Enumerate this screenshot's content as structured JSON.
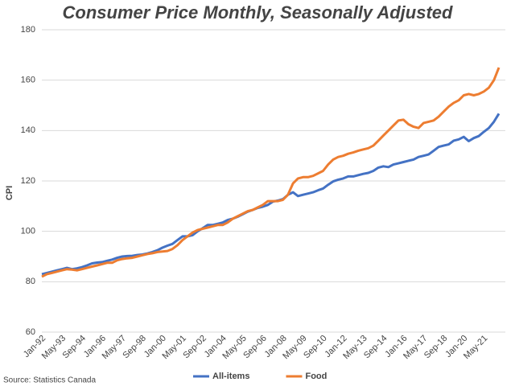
{
  "chart_data": {
    "type": "line",
    "title": "Consumer Price Monthly, Seasonally Adjusted",
    "y_label": "CPI",
    "source": "Source: Statistics Canada",
    "categories": [
      "Jan-92",
      null,
      null,
      null,
      "May-93",
      null,
      null,
      null,
      "Sep-94",
      null,
      null,
      null,
      "Jan-96",
      null,
      null,
      null,
      "May-97",
      null,
      null,
      null,
      "Sep-98",
      null,
      null,
      null,
      "Jan-00",
      null,
      null,
      null,
      "May-01",
      null,
      null,
      null,
      "Sep-02",
      null,
      null,
      null,
      "Jan-04",
      null,
      null,
      null,
      "May-05",
      null,
      null,
      null,
      "Sep-06",
      null,
      null,
      null,
      "Jan-08",
      null,
      null,
      null,
      "May-09",
      null,
      null,
      null,
      "Sep-10",
      null,
      null,
      null,
      "Jan-12",
      null,
      null,
      null,
      "May-13",
      null,
      null,
      null,
      "Sep-14",
      null,
      null,
      null,
      "Jan-16",
      null,
      null,
      null,
      "May-17",
      null,
      null,
      null,
      "Sep-18",
      null,
      null,
      null,
      "Jan-20",
      null,
      null,
      null,
      "May-21",
      null,
      null,
      null
    ],
    "series": [
      {
        "name": "All-items",
        "color": "#4472c4",
        "values": [
          83.0,
          83.5,
          84.0,
          84.5,
          85.0,
          85.5,
          85.0,
          85.3,
          85.8,
          86.5,
          87.3,
          87.6,
          87.8,
          88.3,
          88.8,
          89.5,
          90.0,
          90.2,
          90.3,
          90.6,
          90.8,
          91.2,
          91.8,
          92.5,
          93.5,
          94.3,
          95.0,
          96.5,
          98.0,
          98.0,
          98.5,
          100.0,
          101.2,
          102.5,
          102.5,
          103.0,
          103.5,
          104.5,
          105.0,
          105.8,
          106.8,
          107.8,
          108.5,
          109.3,
          109.8,
          110.5,
          111.8,
          112.2,
          112.8,
          114.5,
          115.5,
          114.0,
          114.5,
          115.0,
          115.5,
          116.3,
          117.0,
          118.5,
          119.8,
          120.5,
          121.0,
          121.8,
          121.8,
          122.3,
          122.8,
          123.2,
          124.0,
          125.3,
          125.8,
          125.5,
          126.5,
          127.0,
          127.5,
          128.0,
          128.5,
          129.5,
          130.0,
          130.5,
          132.0,
          133.5,
          134.0,
          134.5,
          136.0,
          136.5,
          137.5,
          135.8,
          137.0,
          137.8,
          139.5,
          141.0,
          143.5,
          146.7
        ]
      },
      {
        "name": "Food",
        "color": "#ed7d31",
        "values": [
          82.0,
          83.0,
          83.5,
          84.0,
          84.5,
          85.0,
          84.8,
          84.5,
          85.0,
          85.5,
          86.0,
          86.5,
          87.0,
          87.5,
          87.5,
          88.5,
          89.0,
          89.3,
          89.5,
          90.0,
          90.5,
          91.0,
          91.3,
          91.8,
          92.0,
          92.2,
          93.0,
          94.5,
          96.5,
          98.0,
          99.5,
          100.5,
          101.0,
          101.5,
          102.0,
          102.5,
          102.5,
          103.5,
          105.0,
          106.0,
          107.0,
          108.0,
          108.5,
          109.5,
          110.5,
          112.0,
          112.0,
          112.0,
          112.5,
          114.5,
          119.0,
          121.0,
          121.5,
          121.5,
          122.0,
          123.0,
          124.0,
          126.5,
          128.5,
          129.5,
          130.0,
          130.8,
          131.3,
          132.0,
          132.5,
          133.0,
          134.0,
          136.0,
          138.0,
          140.0,
          142.0,
          144.0,
          144.3,
          142.5,
          141.5,
          141.0,
          143.0,
          143.5,
          144.0,
          145.5,
          147.5,
          149.5,
          151.0,
          152.0,
          154.0,
          154.5,
          154.0,
          154.5,
          155.5,
          157.0,
          160.0,
          165.0
        ]
      }
    ],
    "ylim": [
      60,
      180
    ],
    "yticks": [
      60,
      80,
      100,
      120,
      140,
      160,
      180
    ],
    "grid": true,
    "legend": "bottom"
  }
}
